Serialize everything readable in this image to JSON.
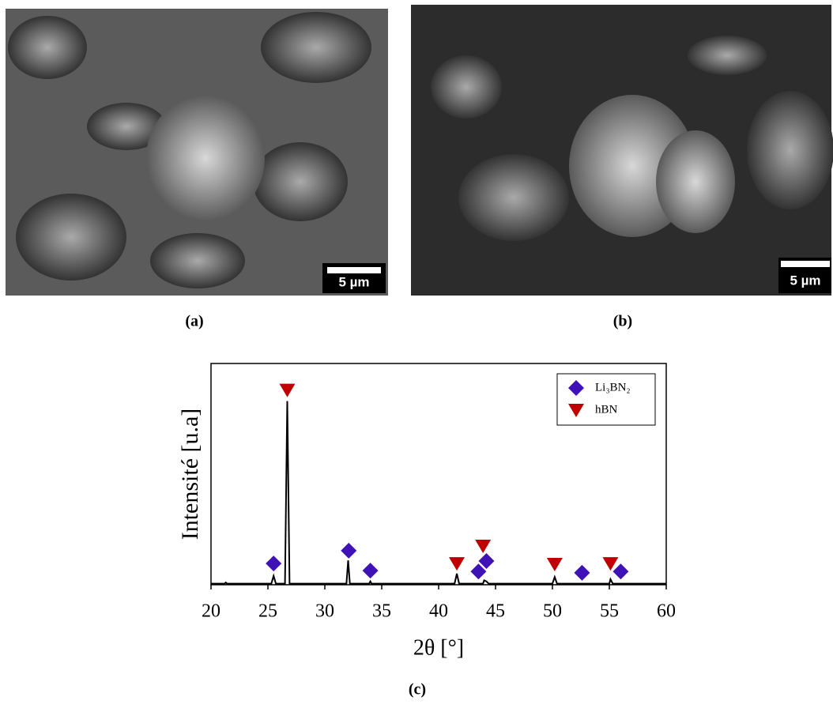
{
  "panels": [
    {
      "caption": "(a)",
      "scale_bar": "5 µm"
    },
    {
      "caption": "(b)",
      "scale_bar": "5 µm"
    }
  ],
  "chart_caption": "(c)",
  "chart_data": {
    "type": "line",
    "x_label": "2θ [°]",
    "y_label": "Intensité [u.a]",
    "xlim": [
      20,
      60
    ],
    "xticks": [
      20,
      25,
      30,
      35,
      40,
      45,
      50,
      55,
      60
    ],
    "ylim": [
      0,
      100
    ],
    "legend": "upper right",
    "series": [
      {
        "color": "#000000",
        "marker": "none",
        "x": [
          20,
          21.2,
          21.3,
          21.4,
          25.3,
          25.5,
          25.7,
          26.5,
          26.7,
          26.9,
          31.9,
          32.05,
          32.2,
          33.9,
          34.0,
          34.1,
          41.4,
          41.6,
          41.8,
          43.9,
          44.0,
          44.2,
          44.4,
          50.0,
          50.2,
          50.4,
          55.0,
          55.1,
          55.3,
          60
        ],
        "values": [
          0.5,
          0.5,
          1,
          0.5,
          0.5,
          4,
          0.5,
          0.5,
          83,
          0.5,
          0.5,
          11,
          0.5,
          0.5,
          1.5,
          0.5,
          0.5,
          5,
          0.5,
          0.5,
          2,
          1.5,
          0.5,
          0.5,
          3.5,
          0.5,
          0.5,
          2.5,
          0.5,
          0.5
        ]
      },
      {
        "name": "Li₃BN₂",
        "color": "#3f12b8",
        "marker": "diamond",
        "x": [
          25.5,
          32.1,
          34.0,
          43.5,
          44.2,
          52.6,
          56.0
        ],
        "values": [
          9.6,
          15.4,
          6.4,
          6,
          10.7,
          5.4,
          6
        ]
      },
      {
        "name": "hBN",
        "color": "#c00000",
        "marker": "triangle",
        "x": [
          26.7,
          41.6,
          43.9,
          50.2,
          55.1
        ],
        "values": [
          88,
          9.6,
          17.5,
          9.3,
          9.6
        ]
      }
    ]
  }
}
